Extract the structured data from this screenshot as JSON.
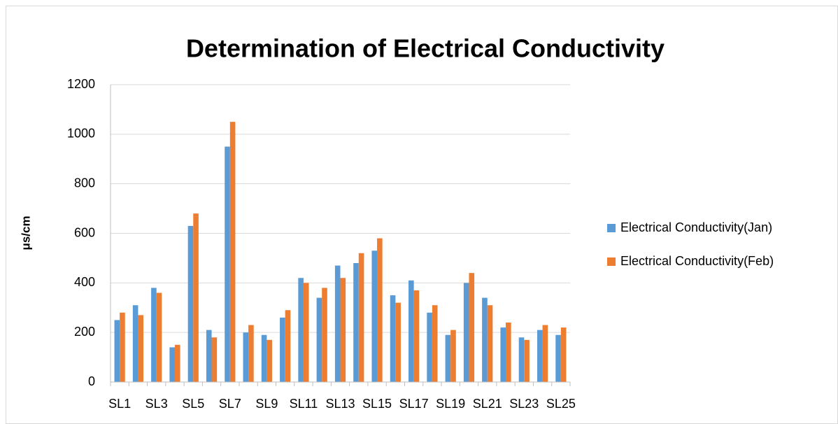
{
  "chart_data": {
    "type": "bar",
    "title": "Determination of Electrical Conductivity",
    "y_label": "μs/cm",
    "categories": [
      "SL1",
      null,
      "SL3",
      null,
      "SL5",
      null,
      "SL7",
      null,
      "SL9",
      null,
      "SL11",
      null,
      "SL13",
      null,
      "SL15",
      null,
      "SL17",
      null,
      "SL19",
      null,
      "SL21",
      null,
      "SL23",
      null,
      "SL25"
    ],
    "series": [
      {
        "name": "Electrical Conductivity(Jan)",
        "color": "#5b9bd5",
        "values": [
          250,
          310,
          380,
          140,
          630,
          210,
          950,
          200,
          190,
          260,
          420,
          340,
          470,
          480,
          530,
          350,
          410,
          280,
          190,
          400,
          340,
          220,
          180,
          210,
          190
        ]
      },
      {
        "name": "Electrical Conductivity(Feb)",
        "color": "#ed7d31",
        "values": [
          280,
          270,
          360,
          150,
          680,
          180,
          1050,
          230,
          170,
          290,
          400,
          380,
          420,
          520,
          580,
          320,
          370,
          310,
          210,
          440,
          310,
          240,
          170,
          230,
          220
        ]
      }
    ],
    "ylim": [
      0,
      1200
    ],
    "yticks": [
      0,
      200,
      400,
      600,
      800,
      1000,
      1200
    ],
    "grid": true,
    "legend": "right"
  }
}
